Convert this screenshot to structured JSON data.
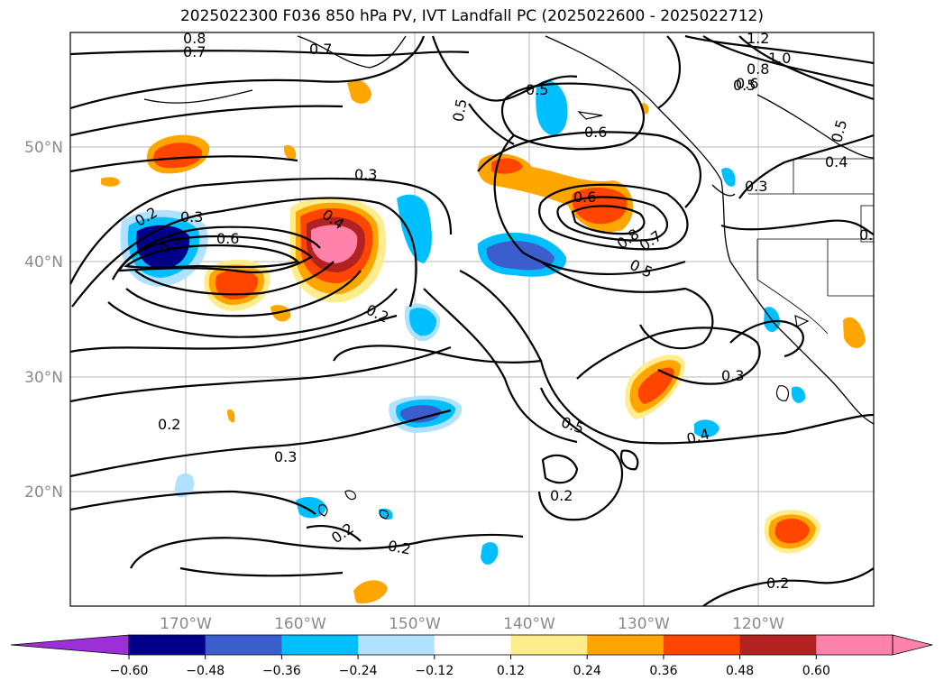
{
  "title": "2025022300 F036 850 hPa PV, IVT Landfall PC (2025022600 - 2025022712)",
  "map": {
    "lat_labels": [
      "50°N",
      "40°N",
      "30°N",
      "20°N"
    ],
    "lon_labels": [
      "170°W",
      "160°W",
      "150°W",
      "140°W",
      "130°W",
      "120°W"
    ],
    "contour_labels": [
      "0.8",
      "0.7",
      "0.7",
      "0.5",
      "0.5",
      "0.6",
      "1.2",
      "1.0",
      "0.8",
      "0.6",
      "0.5",
      "0.5",
      "0.4",
      "0.3",
      "0.3",
      "0.3",
      "0.2",
      "0.3",
      "0.5",
      "0.6",
      "0.4",
      "0.6",
      "0.8",
      "0.7",
      "0.5",
      "0.2",
      "0.2",
      "0.3",
      "0.5",
      "0.3",
      "0.4",
      "0.2",
      "0.2",
      "0.2",
      "0.2"
    ]
  },
  "colorbar": {
    "ticks": [
      "−0.60",
      "−0.48",
      "−0.36",
      "−0.24",
      "−0.12",
      "0.12",
      "0.24",
      "0.36",
      "0.48",
      "0.60"
    ],
    "colors": [
      "#9b30d9",
      "#00008b",
      "#3a5fcd",
      "#00bfff",
      "#b0e2ff",
      "#ffffff",
      "#ffec8b",
      "#ffa500",
      "#ff4500",
      "#b22222",
      "#ff82ab",
      "#ff82ab"
    ]
  }
}
